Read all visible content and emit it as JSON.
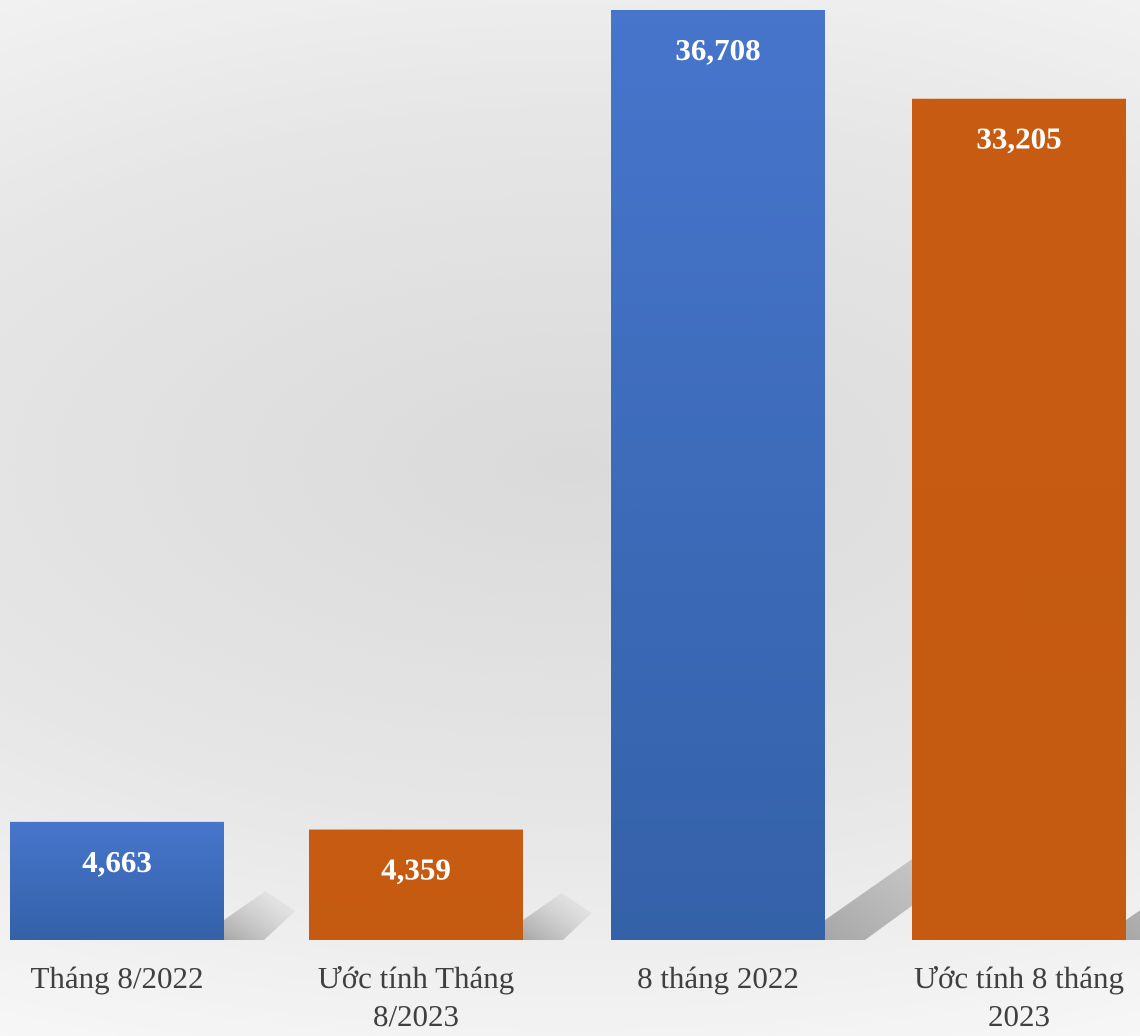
{
  "chart_data": {
    "type": "bar",
    "categories": [
      [
        "Tháng 8/2022"
      ],
      [
        "Ước tính Tháng",
        "8/2023"
      ],
      [
        "8 tháng 2022"
      ],
      [
        "Ước tính 8 tháng",
        "2023"
      ]
    ],
    "values": [
      4663,
      4359,
      36708,
      33205
    ],
    "value_labels": [
      "4,663",
      "4,359",
      "36,708",
      "33,205"
    ],
    "bar_colors": [
      "#4472c4",
      "#c55a11",
      "#4472c4",
      "#c55a11"
    ],
    "ylim": [
      0,
      36708
    ],
    "grid": false,
    "legend": "none"
  }
}
